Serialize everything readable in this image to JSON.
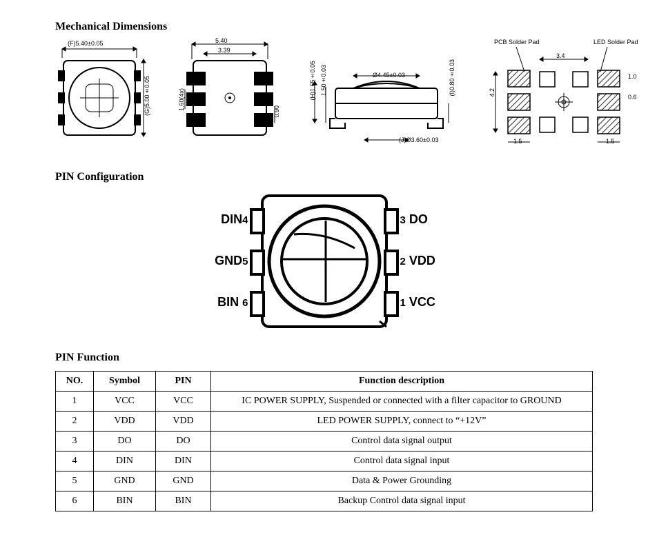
{
  "sections": {
    "mech_title": "Mechanical Dimensions",
    "pin_config_title": "PIN Configuration",
    "pin_fn_title": "PIN Function"
  },
  "mech": {
    "view1": {
      "F": "(F)5.40±0.05",
      "G": "(G)5.00±0.05"
    },
    "view2": {
      "top_outer": "5.40",
      "top_inner": "3.39",
      "left_h": "1.60(4x)",
      "right_h": "0.90"
    },
    "view3": {
      "H": "(H)1.65±0.05",
      "inner_h": "1.50±0.03",
      "dia": "Ø4.45±0.03",
      "J": "(J)Ø3.60±0.03",
      "I": "(I)0.80±0.03"
    },
    "view4": {
      "pcb_pad": "PCB Solder Pad",
      "led_pad": "LED Solder Pad",
      "top_w": "3.4",
      "side_out": "1.5",
      "h": "4.2",
      "pad_h": "1.0",
      "pad_h2": "0.6"
    }
  },
  "pin_config": {
    "left": [
      {
        "num": "4",
        "name": "DIN"
      },
      {
        "num": "5",
        "name": "GND"
      },
      {
        "num": "6",
        "name": "BIN"
      }
    ],
    "right": [
      {
        "num": "3",
        "name": "DO"
      },
      {
        "num": "2",
        "name": "VDD"
      },
      {
        "num": "1",
        "name": "VCC"
      }
    ]
  },
  "pin_fn": {
    "headers": [
      "NO.",
      "Symbol",
      "PIN",
      "Function description"
    ],
    "col_widths": [
      "55px",
      "90px",
      "80px",
      "auto"
    ],
    "rows": [
      [
        "1",
        "VCC",
        "VCC",
        "IC POWER SUPPLY, Suspended or connected with a filter capacitor to GROUND"
      ],
      [
        "2",
        "VDD",
        "VDD",
        "LED POWER SUPPLY, connect to “+12V”"
      ],
      [
        "3",
        "DO",
        "DO",
        "Control data signal output"
      ],
      [
        "4",
        "DIN",
        "DIN",
        "Control data signal input"
      ],
      [
        "5",
        "GND",
        "GND",
        "Data & Power Grounding"
      ],
      [
        "6",
        "BIN",
        "BIN",
        "Backup Control data signal input"
      ]
    ]
  },
  "style": {
    "stroke": "#000000",
    "hatch": "#2b2b2b",
    "bg": "#ffffff",
    "body_stroke_w": 2
  }
}
